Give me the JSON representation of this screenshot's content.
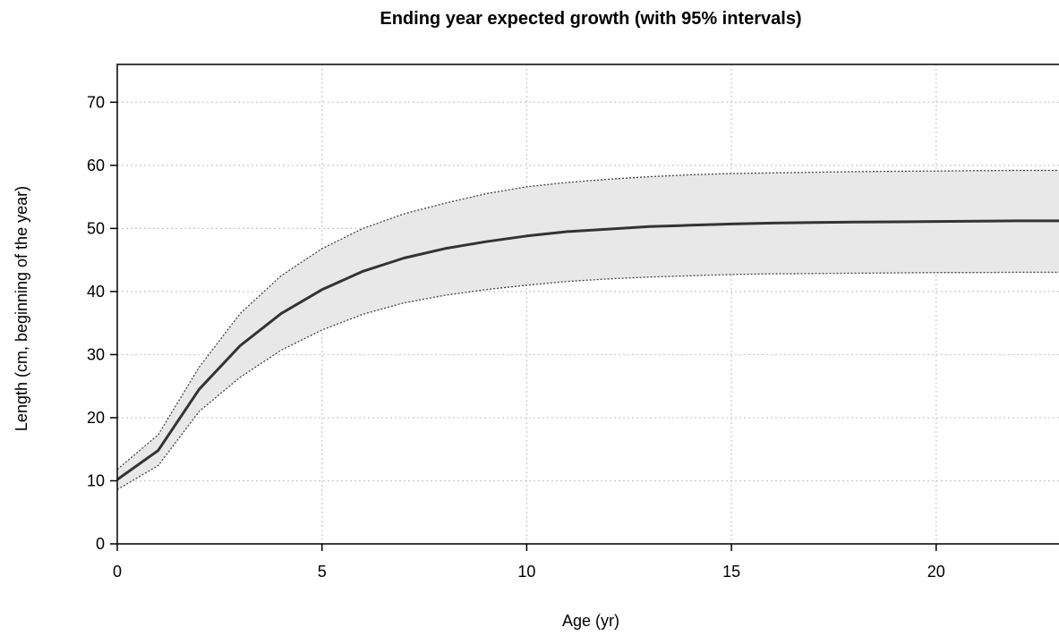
{
  "chart_data": {
    "type": "line",
    "title": "Ending year expected growth (with 95% intervals)",
    "xlabel": "Age (yr)",
    "ylabel": "Length (cm, beginning of the year)",
    "xlim": [
      0,
      23
    ],
    "ylim": [
      0,
      76
    ],
    "xticks": [
      0,
      5,
      10,
      15,
      20
    ],
    "yticks": [
      0,
      10,
      20,
      30,
      40,
      50,
      60,
      70
    ],
    "grid": true,
    "legend": "none",
    "colors": {
      "band": "#e8e8e8",
      "mean": "#333333",
      "interval": "#444444"
    },
    "x": [
      0,
      1,
      2,
      3,
      4,
      5,
      6,
      7,
      8,
      9,
      10,
      11,
      12,
      13,
      14,
      15,
      16,
      17,
      18,
      19,
      20,
      21,
      22,
      23
    ],
    "series": [
      {
        "role": "mean",
        "values": [
          10.2,
          14.8,
          24.5,
          31.4,
          36.5,
          40.3,
          43.2,
          45.3,
          46.8,
          47.9,
          48.8,
          49.5,
          49.9,
          50.3,
          50.5,
          50.7,
          50.85,
          50.95,
          51.0,
          51.05,
          51.1,
          51.15,
          51.2,
          51.2
        ]
      },
      {
        "role": "upper_95",
        "values": [
          11.8,
          17.3,
          28.0,
          36.5,
          42.5,
          46.8,
          50.0,
          52.3,
          54.0,
          55.5,
          56.6,
          57.3,
          57.8,
          58.2,
          58.5,
          58.7,
          58.8,
          58.9,
          59.0,
          59.05,
          59.1,
          59.15,
          59.2,
          59.2
        ]
      },
      {
        "role": "lower_95",
        "values": [
          8.6,
          12.4,
          21.0,
          26.4,
          30.7,
          33.9,
          36.4,
          38.2,
          39.4,
          40.3,
          41.0,
          41.6,
          42.0,
          42.3,
          42.5,
          42.7,
          42.8,
          42.85,
          42.9,
          42.95,
          43.0,
          43.0,
          43.05,
          43.05
        ]
      }
    ]
  }
}
